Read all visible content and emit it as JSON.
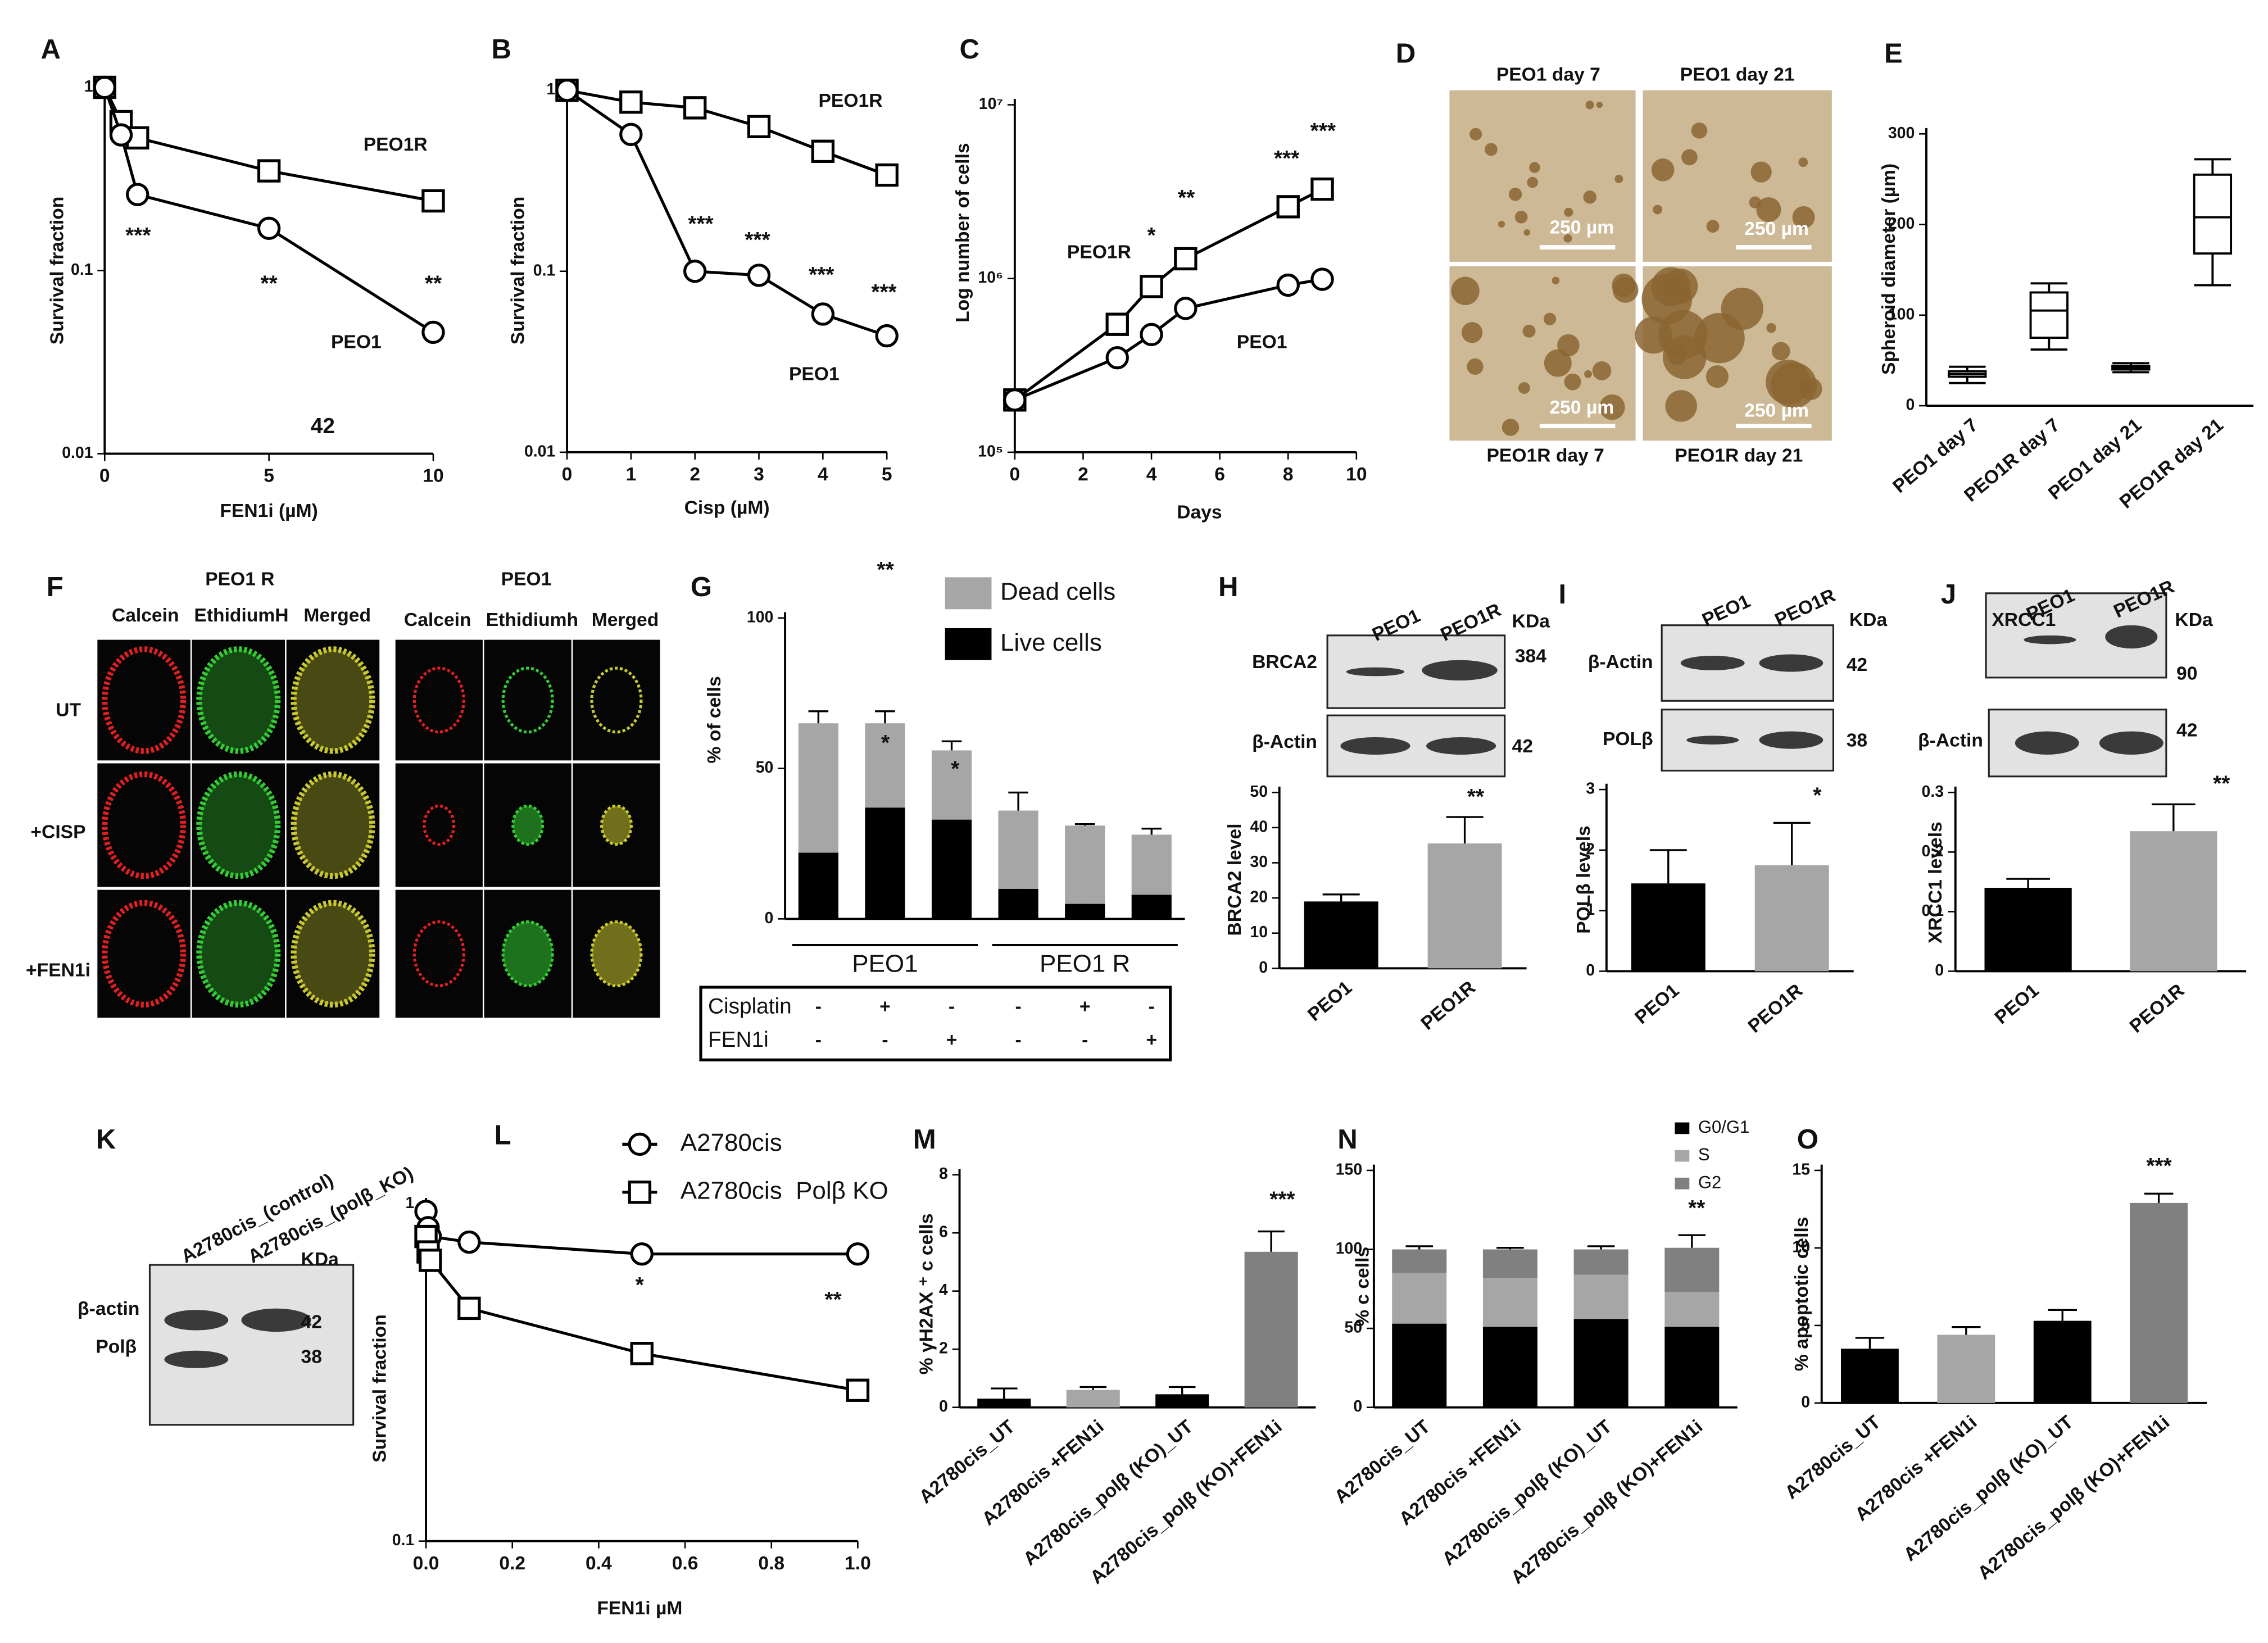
{
  "chart_data": [
    {
      "label": "A",
      "type": "line",
      "y_scale": "log",
      "x_label": "FEN1i (µM)",
      "y_label": "Survival fraction",
      "x": [
        0,
        0.5,
        1,
        5,
        10
      ],
      "xlim": [
        0,
        10
      ],
      "ylim": [
        0.01,
        1
      ],
      "xticks": [
        0,
        5,
        10
      ],
      "yticks": [
        0.01,
        0.1,
        1
      ],
      "series": [
        {
          "name": "PEO1R",
          "marker": "square",
          "color": "#000000",
          "values": [
            1,
            0.65,
            0.53,
            0.35,
            0.24
          ]
        },
        {
          "name": "PEO1",
          "marker": "circle",
          "color": "#000000",
          "values": [
            1,
            0.55,
            0.26,
            0.17,
            0.046
          ]
        }
      ],
      "annotations": [
        "***",
        "**",
        "**",
        "42"
      ]
    },
    {
      "label": "B",
      "type": "line",
      "y_scale": "log",
      "x_label": "Cisp (µM)",
      "y_label": "Survival fraction",
      "x": [
        0,
        1,
        2,
        3,
        4,
        5
      ],
      "xlim": [
        0,
        5
      ],
      "ylim": [
        0.01,
        1
      ],
      "xticks": [
        0,
        1,
        2,
        3,
        4,
        5
      ],
      "yticks": [
        0.01,
        0.1,
        1
      ],
      "series": [
        {
          "name": "PEO1R",
          "marker": "square",
          "color": "#000000",
          "values": [
            1,
            0.86,
            0.8,
            0.63,
            0.46,
            0.34
          ]
        },
        {
          "name": "PEO1",
          "marker": "circle",
          "color": "#000000",
          "values": [
            1,
            0.57,
            0.1,
            0.095,
            0.058,
            0.044
          ]
        }
      ],
      "annotations": [
        "***",
        "***",
        "***",
        "***"
      ]
    },
    {
      "label": "C",
      "type": "line",
      "y_scale": "log",
      "x_label": "Days",
      "y_label": "Log number of cells",
      "x": [
        0,
        3,
        4,
        5,
        8,
        9
      ],
      "xlim": [
        0,
        10
      ],
      "ylim": [
        100000,
        10000000
      ],
      "xticks": [
        0,
        2,
        4,
        6,
        8,
        10
      ],
      "yticks": [
        {
          "value": 100000,
          "label": "10⁵"
        },
        {
          "value": 1000000,
          "label": "10⁶"
        },
        {
          "value": 10000000,
          "label": "10⁷"
        }
      ],
      "series": [
        {
          "name": "PEO1R",
          "marker": "square",
          "color": "#000000",
          "values": [
            200000,
            545000,
            900000,
            1300000,
            2590000,
            3270000
          ]
        },
        {
          "name": "PEO1",
          "marker": "circle",
          "color": "#000000",
          "values": [
            200000,
            350000,
            476000,
            673000,
            916000,
            990000
          ]
        }
      ],
      "annotations": [
        "*",
        "**",
        "***",
        "***"
      ]
    },
    {
      "label": "E",
      "type": "box",
      "y_label": "Spheroid diameter (µm)",
      "categories": [
        "PEO1 day 7",
        "PEO1R day 7",
        "PEO1 day 21",
        "PEO1R day 21"
      ],
      "boxes": [
        {
          "min": 25,
          "q1": 32,
          "median": 35,
          "q3": 38,
          "max": 43
        },
        {
          "min": 62,
          "q1": 75,
          "median": 105,
          "q3": 125,
          "max": 135
        },
        {
          "min": 37,
          "q1": 40,
          "median": 42,
          "q3": 44,
          "max": 47
        },
        {
          "min": 133,
          "q1": 168,
          "median": 208,
          "q3": 255,
          "max": 272
        }
      ],
      "color": "#ffffff",
      "ylim": [
        0,
        300
      ],
      "yticks": [
        0,
        100,
        200,
        300
      ]
    },
    {
      "label": "G",
      "type": "bar",
      "stacked": true,
      "y_label": "% of cells",
      "categories": [
        null,
        null,
        null,
        null,
        null,
        null
      ],
      "series": [
        {
          "name": "Live cells",
          "color": "#000000",
          "values": [
            22,
            37,
            33,
            10,
            5,
            8
          ],
          "errors": [
            4,
            4,
            3,
            1,
            1,
            1
          ]
        },
        {
          "name": "Dead cells",
          "color": "#a6a6a6",
          "values": [
            43,
            28,
            23,
            26,
            26,
            20
          ],
          "errors": [
            4,
            4,
            3,
            6,
            0.5,
            2
          ]
        }
      ],
      "ylim": [
        0,
        100
      ],
      "yticks": [
        0,
        50,
        100
      ],
      "annotations": [
        "**",
        "*",
        "*"
      ],
      "groups": [
        "PEO1",
        "PEO1 R"
      ],
      "conditions": [
        {
          "name": "Cisplatin",
          "values": [
            "-",
            "+",
            "-",
            "-",
            "+",
            "-"
          ]
        },
        {
          "name": "FEN1i",
          "values": [
            "-",
            "-",
            "+",
            "-",
            "-",
            "+"
          ]
        }
      ]
    },
    {
      "label": "H",
      "type": "bar",
      "y_label": "BRCA2 level",
      "categories": [
        "PEO1",
        "PEO1R"
      ],
      "values": [
        19,
        35.5
      ],
      "errors": [
        2,
        7.5
      ],
      "colors": [
        "#000000",
        "#a6a6a6"
      ],
      "ylim": [
        0,
        50
      ],
      "yticks": [
        0,
        10,
        20,
        30,
        40,
        50
      ],
      "annotations": [
        "**"
      ]
    },
    {
      "label": "I",
      "type": "bar",
      "y_label": "POLβ levels",
      "categories": [
        "PEO1",
        "PEO1R"
      ],
      "values": [
        1.45,
        1.75
      ],
      "errors": [
        0.55,
        0.7
      ],
      "colors": [
        "#000000",
        "#a6a6a6"
      ],
      "ylim": [
        0,
        3
      ],
      "yticks": [
        0,
        1,
        2,
        3
      ],
      "annotations": [
        "*"
      ]
    },
    {
      "label": "J",
      "type": "bar",
      "y_label": "XRCC1 levels",
      "categories": [
        "PEO1",
        "PEO1R"
      ],
      "values": [
        0.14,
        0.235
      ],
      "errors": [
        0.015,
        0.045
      ],
      "colors": [
        "#000000",
        "#a6a6a6"
      ],
      "ylim": [
        0,
        0.3
      ],
      "yticks": [
        0,
        0.1,
        0.2,
        0.3
      ],
      "annotations": [
        "**"
      ]
    },
    {
      "label": "L",
      "type": "line",
      "y_scale": "log",
      "legend": true,
      "x_label": "FEN1i µM",
      "y_label": "Survival fraction",
      "x": [
        0,
        0.005,
        0.01,
        0.1,
        0.5,
        1
      ],
      "xlim": [
        0,
        1
      ],
      "ylim": [
        0.1,
        1
      ],
      "xticks": [
        {
          "value": 0,
          "label": "0.0"
        },
        0.2,
        0.4,
        0.6,
        0.8,
        {
          "value": 1,
          "label": "1.0"
        }
      ],
      "yticks": [
        0.1,
        1
      ],
      "series": [
        {
          "name": "A2780cis",
          "marker": "circle",
          "color": "#000000",
          "values": [
            0.95,
            0.85,
            0.8,
            0.77,
            0.71,
            0.71
          ]
        },
        {
          "name": "A2780cis  Polβ KO",
          "marker": "square",
          "color": "#000000",
          "values": [
            0.8,
            0.72,
            0.68,
            0.49,
            0.36,
            0.28
          ]
        }
      ],
      "annotations": [
        "*",
        "**"
      ]
    },
    {
      "label": "M",
      "type": "bar",
      "y_label": "% γH2AX ⁺ c cells",
      "categories": [
        "A2780cis_UT",
        "A2780cis +FEN1i",
        "A2780cis_polβ (KO)_UT",
        "A2780cis_polβ (KO)+FEN1i"
      ],
      "values": [
        0.3,
        0.6,
        0.45,
        5.35
      ],
      "errors": [
        0.35,
        0.1,
        0.25,
        0.7
      ],
      "colors": [
        "#000000",
        "#a6a6a6",
        "#000000",
        "#808080"
      ],
      "ylim": [
        0,
        8
      ],
      "yticks": [
        0,
        2,
        4,
        6,
        8
      ],
      "annotations": [
        "***"
      ]
    },
    {
      "label": "N",
      "type": "bar",
      "stacked": true,
      "y_label": "% c cells",
      "categories": [
        "A2780cis_UT",
        "A2780cis +FEN1i",
        "A2780cis_polβ (KO)_UT",
        "A2780cis_polβ (KO)+FEN1i"
      ],
      "series": [
        {
          "name": "G0/G1",
          "color": "#000000",
          "values": [
            53,
            51,
            56,
            51
          ],
          "errors": [
            2,
            2,
            2,
            8
          ]
        },
        {
          "name": "S",
          "color": "#a6a6a6",
          "values": [
            32,
            31,
            28,
            22
          ]
        },
        {
          "name": "G2",
          "color": "#808080",
          "values": [
            15,
            18,
            16,
            28
          ],
          "errors": [
            2,
            1,
            2,
            8
          ]
        }
      ],
      "ylim": [
        0,
        150
      ],
      "yticks": [
        0,
        50,
        100,
        150
      ],
      "annotations": [
        "**"
      ]
    },
    {
      "label": "O",
      "type": "bar",
      "y_label": "% apoptotic cells",
      "categories": [
        "A2780cis_UT",
        "A2780cis +FEN1i",
        "A2780cis_polβ (KO)_UT",
        "A2780cis_polβ (KO)+FEN1i"
      ],
      "values": [
        3.5,
        4.4,
        5.3,
        12.9
      ],
      "errors": [
        0.7,
        0.5,
        0.7,
        0.6
      ],
      "colors": [
        "#000000",
        "#a6a6a6",
        "#000000",
        "#808080"
      ],
      "ylim": [
        0,
        15
      ],
      "yticks": [
        0,
        5,
        10,
        15
      ],
      "annotations": [
        "***"
      ]
    }
  ],
  "panel_D": {
    "label": "D",
    "images": [
      "PEO1 day 7",
      "PEO1 day 21",
      "PEO1R day 7",
      "PEO1R day 21"
    ],
    "scale_bar": "250 µm"
  },
  "panel_F": {
    "label": "F",
    "groups": [
      {
        "title": "PEO1 R",
        "channels": [
          "Calcein",
          "EthidiumH",
          "Merged"
        ]
      },
      {
        "title": "PEO1",
        "channels": [
          "Calcein",
          "Ethidiumh",
          "Merged"
        ]
      }
    ],
    "rows": [
      "UT",
      "+CISP",
      "+FEN1i"
    ]
  },
  "blots": {
    "H": {
      "lanes": [
        "PEO1",
        "PEO1R"
      ],
      "unit": "KDa",
      "bands": [
        {
          "name": "BRCA2",
          "size": 384
        },
        {
          "name": "β-Actin",
          "size": 42
        }
      ]
    },
    "I": {
      "lanes": [
        "PEO1",
        "PEO1R"
      ],
      "unit": "KDa",
      "bands": [
        {
          "name": "β-Actin",
          "size": 42
        },
        {
          "name": "POLβ",
          "size": 38
        }
      ]
    },
    "J": {
      "lanes": [
        "PEO1",
        "PEO1R"
      ],
      "unit": "KDa",
      "bands": [
        {
          "name": "XRCC1",
          "size": 90
        },
        {
          "name": "β-Actin",
          "size": 42
        }
      ]
    },
    "K": {
      "label": "K",
      "lanes": [
        "A2780cis_(control)",
        "A2780cis_(polβ_KO)"
      ],
      "unit": "KDa",
      "bands": [
        {
          "name": "β-actin",
          "size": 42
        },
        {
          "name": "Polβ",
          "size": 38
        }
      ]
    }
  }
}
